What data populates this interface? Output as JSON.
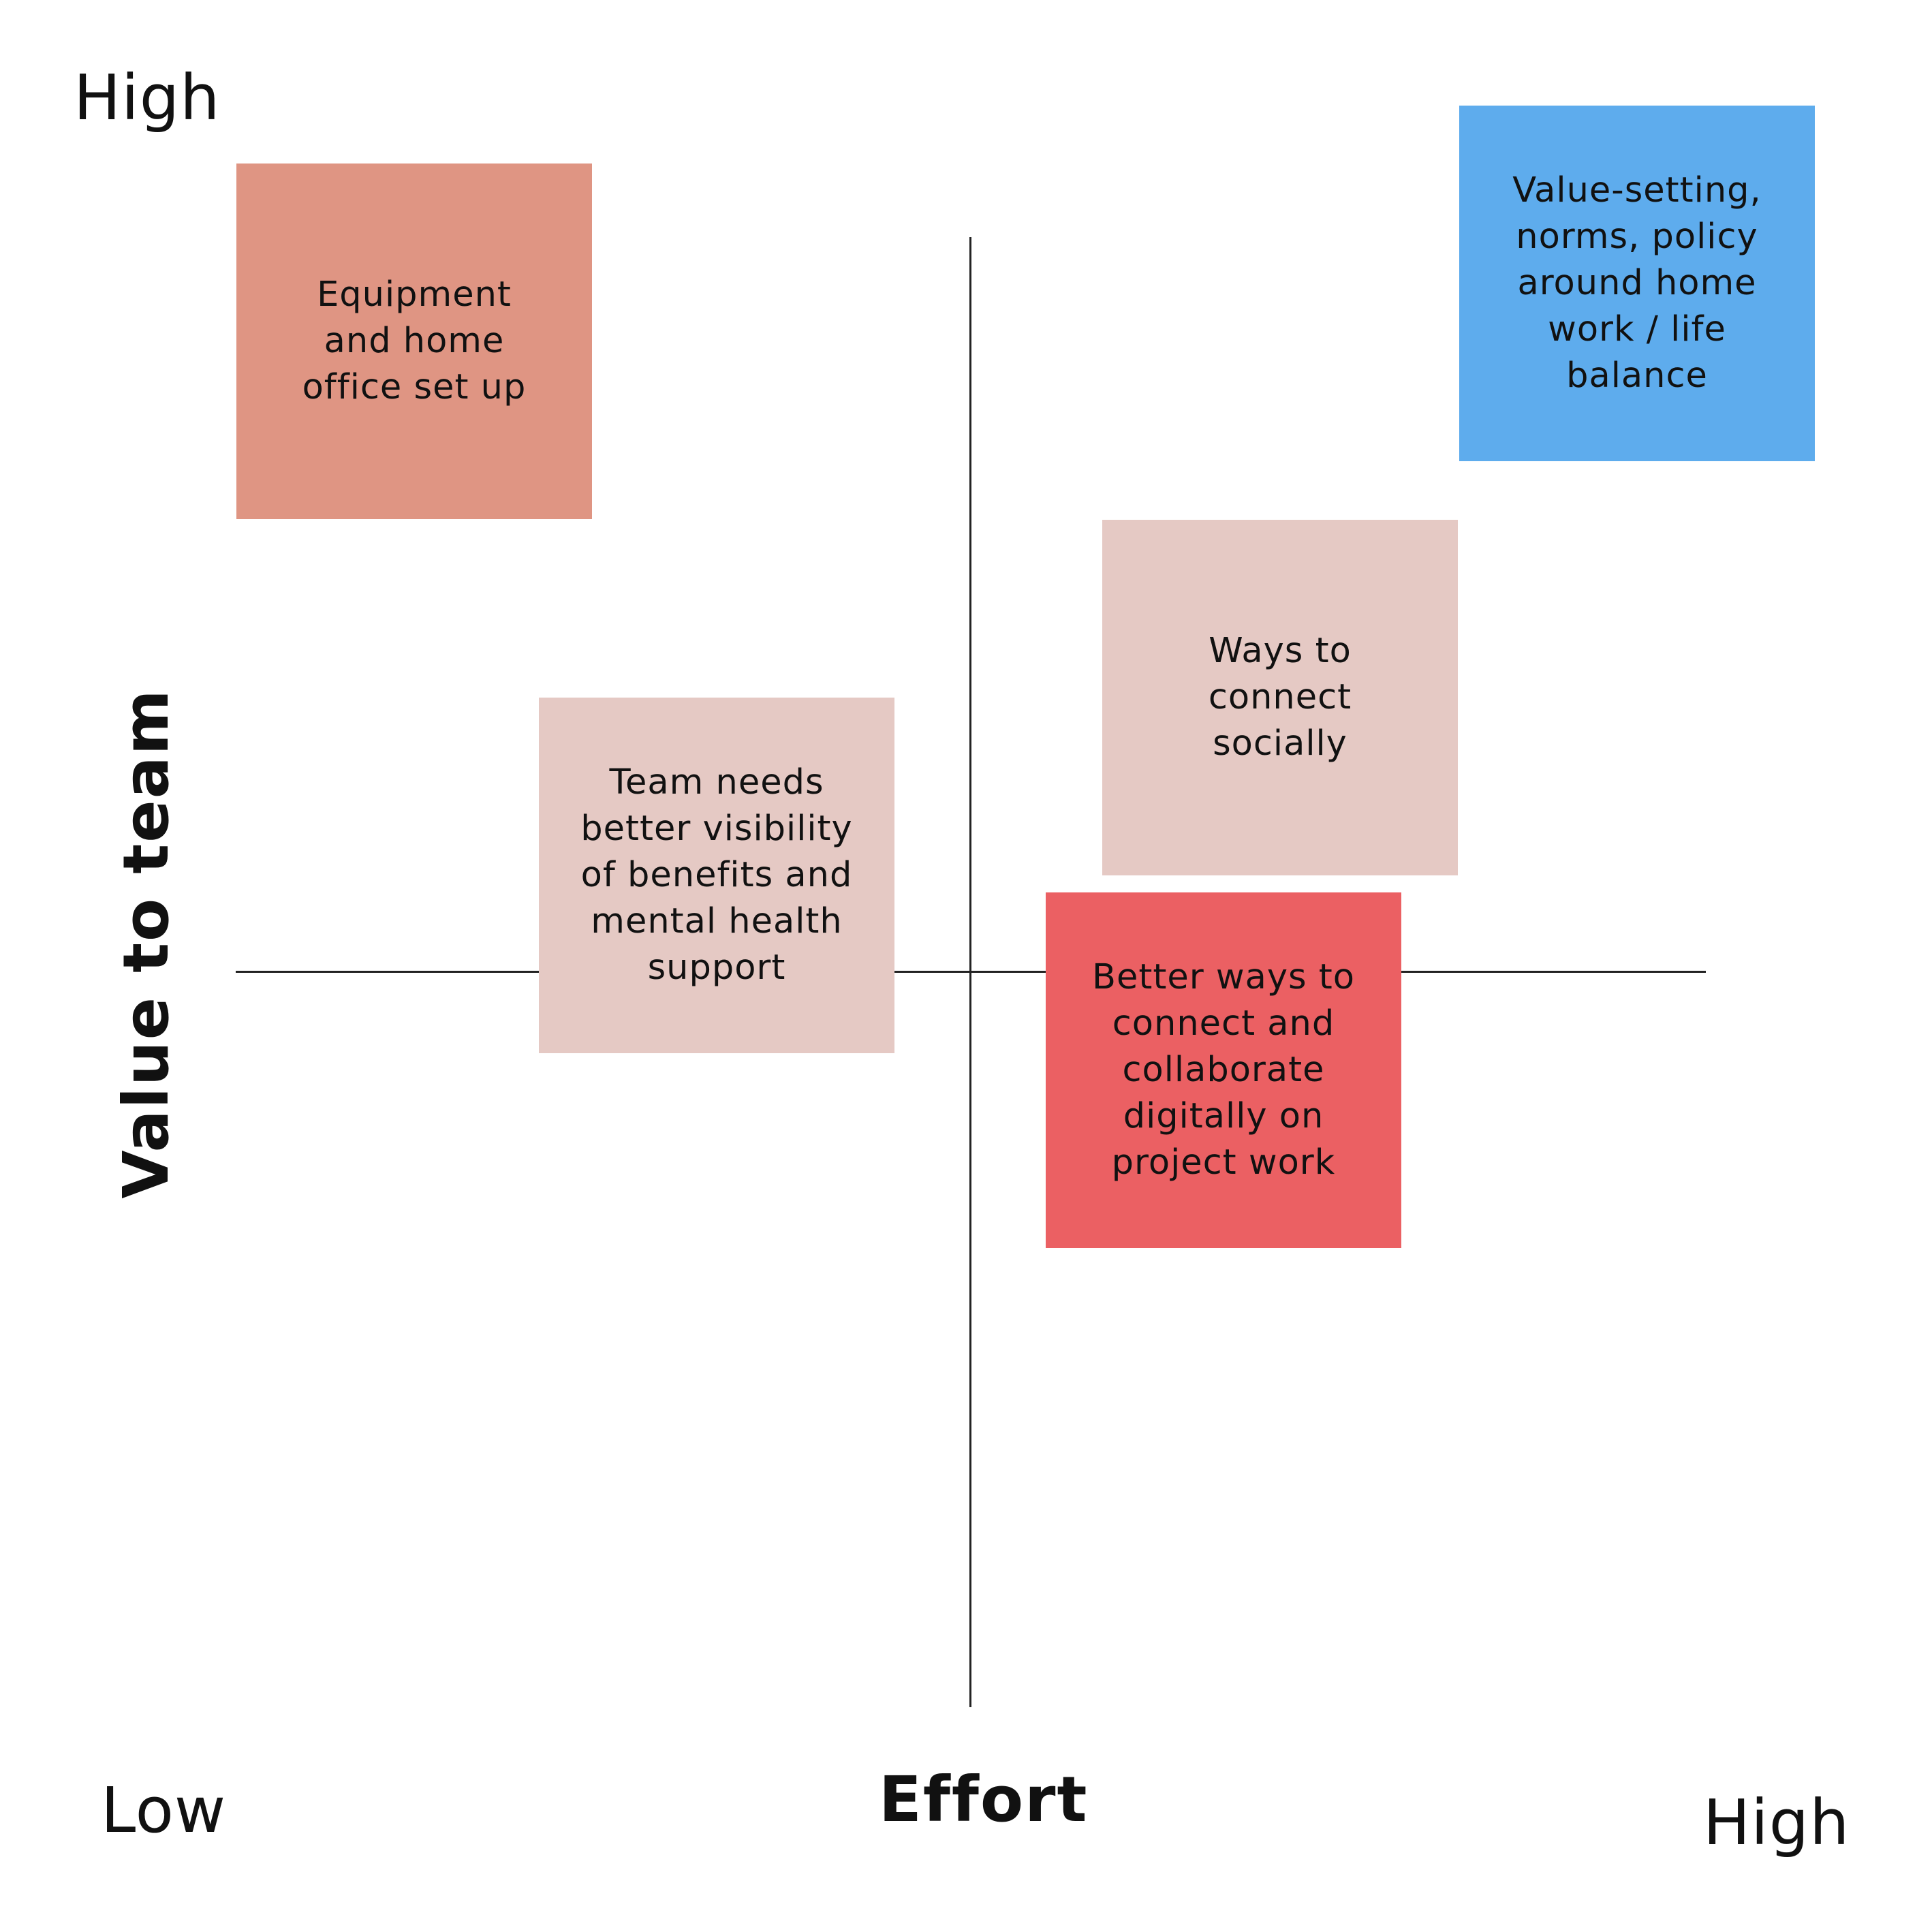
{
  "axes": {
    "y_title": "Value to team",
    "x_title": "Effort",
    "y_high_label": "High",
    "x_low_label": "Low",
    "x_high_label": "High"
  },
  "notes": [
    {
      "text": "Equipment and home office set up",
      "color": "#df9583"
    },
    {
      "text": "Value-setting, norms, policy around home work / life balance",
      "color": "#5eaced"
    },
    {
      "text": "Ways to connect socially",
      "color": "#e5c9c4"
    },
    {
      "text": "Team needs better visibility of benefits and mental health support",
      "color": "#e5c9c4"
    },
    {
      "text": "Better ways to connect and collaborate digitally on project work",
      "color": "#eb6063"
    }
  ]
}
